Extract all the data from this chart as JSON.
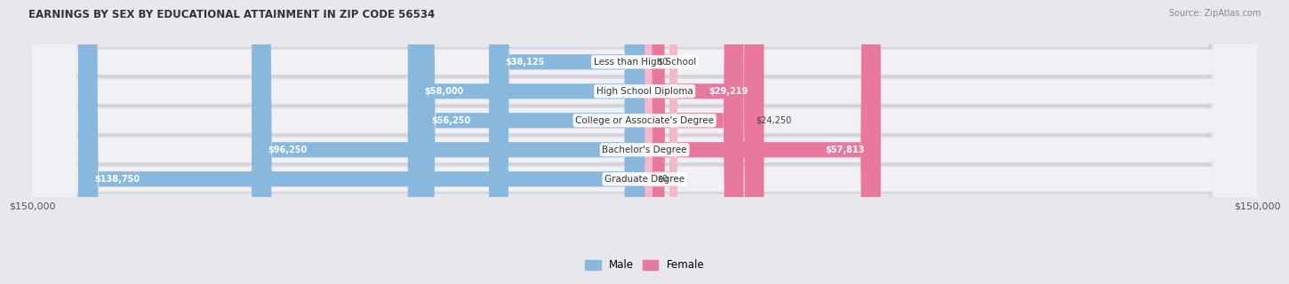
{
  "title": "EARNINGS BY SEX BY EDUCATIONAL ATTAINMENT IN ZIP CODE 56534",
  "source": "Source: ZipAtlas.com",
  "categories": [
    "Less than High School",
    "High School Diploma",
    "College or Associate's Degree",
    "Bachelor's Degree",
    "Graduate Degree"
  ],
  "male_values": [
    38125,
    58000,
    56250,
    96250,
    138750
  ],
  "female_values": [
    0,
    29219,
    24250,
    57813,
    0
  ],
  "male_labels": [
    "$38,125",
    "$58,000",
    "$56,250",
    "$96,250",
    "$138,750"
  ],
  "female_labels": [
    "$0",
    "$29,219",
    "$24,250",
    "$57,813",
    "$0"
  ],
  "male_color": "#88b8de",
  "female_color": "#e8789e",
  "female_color_light": "#f4b8cc",
  "axis_limit": 150000,
  "bg_color": "#e8e8ec",
  "row_bg_color": "#f2f2f4",
  "row_alt_color": "#e0e0e6",
  "xlabel_left": "$150,000",
  "xlabel_right": "$150,000"
}
